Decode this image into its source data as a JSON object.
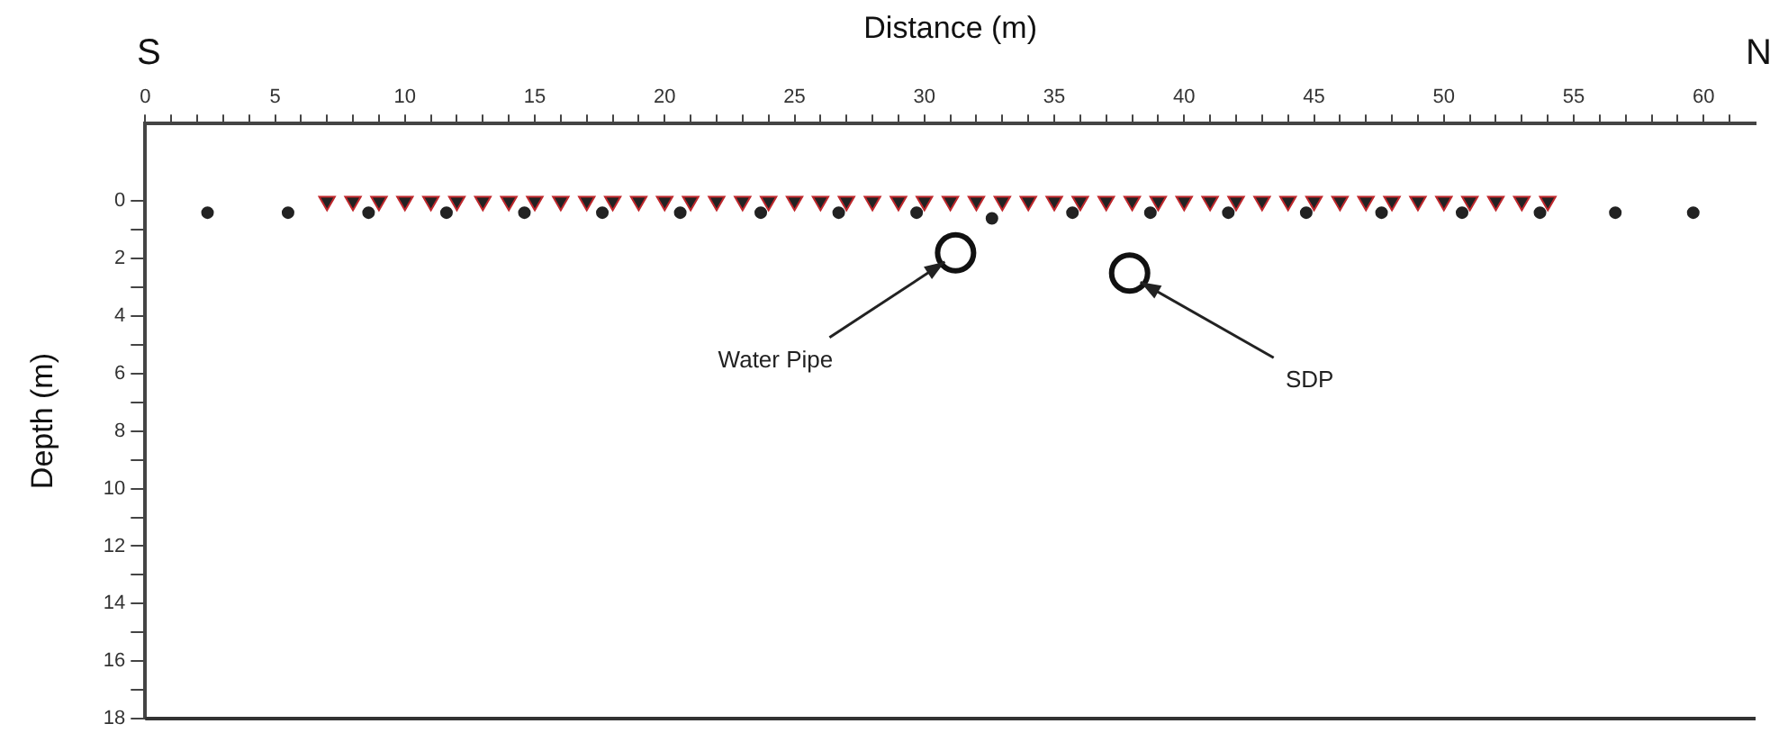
{
  "chart_data": {
    "type": "scatter",
    "xlabel": "Distance (m)",
    "ylabel": "Depth (m)",
    "xlim": [
      0,
      62
    ],
    "xticks": [
      0,
      {
        "value": 1,
        "label": null
      },
      {
        "value": 2,
        "label": null
      },
      {
        "value": 3,
        "label": null
      },
      {
        "value": 4,
        "label": null
      },
      5,
      {
        "value": 6,
        "label": null
      },
      {
        "value": 7,
        "label": null
      },
      {
        "value": 8,
        "label": null
      },
      {
        "value": 9,
        "label": null
      },
      10,
      {
        "value": 11,
        "label": null
      },
      {
        "value": 12,
        "label": null
      },
      {
        "value": 13,
        "label": null
      },
      {
        "value": 14,
        "label": null
      },
      15,
      {
        "value": 16,
        "label": null
      },
      {
        "value": 17,
        "label": null
      },
      {
        "value": 18,
        "label": null
      },
      {
        "value": 19,
        "label": null
      },
      20,
      {
        "value": 21,
        "label": null
      },
      {
        "value": 22,
        "label": null
      },
      {
        "value": 23,
        "label": null
      },
      {
        "value": 24,
        "label": null
      },
      25,
      {
        "value": 26,
        "label": null
      },
      {
        "value": 27,
        "label": null
      },
      {
        "value": 28,
        "label": null
      },
      {
        "value": 29,
        "label": null
      },
      30,
      {
        "value": 31,
        "label": null
      },
      {
        "value": 32,
        "label": null
      },
      {
        "value": 33,
        "label": null
      },
      {
        "value": 34,
        "label": null
      },
      35,
      {
        "value": 36,
        "label": null
      },
      {
        "value": 37,
        "label": null
      },
      {
        "value": 38,
        "label": null
      },
      {
        "value": 39,
        "label": null
      },
      40,
      {
        "value": 41,
        "label": null
      },
      {
        "value": 42,
        "label": null
      },
      {
        "value": 43,
        "label": null
      },
      {
        "value": 44,
        "label": null
      },
      45,
      {
        "value": 46,
        "label": null
      },
      {
        "value": 47,
        "label": null
      },
      {
        "value": 48,
        "label": null
      },
      {
        "value": 49,
        "label": null
      },
      50,
      {
        "value": 51,
        "label": null
      },
      {
        "value": 52,
        "label": null
      },
      {
        "value": 53,
        "label": null
      },
      {
        "value": 54,
        "label": null
      },
      55,
      {
        "value": 56,
        "label": null
      },
      {
        "value": 57,
        "label": null
      },
      {
        "value": 58,
        "label": null
      },
      {
        "value": 59,
        "label": null
      },
      60,
      {
        "value": 61,
        "label": null
      }
    ],
    "ylim": [
      18,
      -2.7
    ],
    "yticks": [
      0,
      {
        "value": 1,
        "label": null
      },
      2,
      {
        "value": 3,
        "label": null
      },
      4,
      {
        "value": 5,
        "label": null
      },
      6,
      {
        "value": 7,
        "label": null
      },
      8,
      {
        "value": 9,
        "label": null
      },
      10,
      {
        "value": 11,
        "label": null
      },
      12,
      {
        "value": 13,
        "label": null
      },
      14,
      {
        "value": 15,
        "label": null
      },
      16,
      {
        "value": 17,
        "label": null
      },
      18
    ],
    "grid": false,
    "legend": false,
    "series": [
      {
        "color": "#222222",
        "marker": "triangle",
        "x": [
          7,
          8,
          9,
          10,
          11,
          12,
          13,
          14,
          15,
          16,
          17,
          18,
          19,
          20,
          21,
          22,
          23,
          24,
          25,
          26,
          27,
          28,
          29,
          30,
          31,
          32,
          33,
          34,
          35,
          36,
          37,
          38,
          39,
          40,
          41,
          42,
          43,
          44,
          45,
          46,
          47,
          48,
          49,
          50,
          51,
          52,
          53,
          54
        ],
        "values": [
          0,
          0,
          0,
          0,
          0,
          0,
          0,
          0,
          0,
          0,
          0,
          0,
          0,
          0,
          0,
          0,
          0,
          0,
          0,
          0,
          0,
          0,
          0,
          0,
          0,
          0,
          0,
          0,
          0,
          0,
          0,
          0,
          0,
          0,
          0,
          0,
          0,
          0,
          0,
          0,
          0,
          0,
          0,
          0,
          0,
          0,
          0,
          0
        ]
      },
      {
        "color": "#222222",
        "marker": "circle",
        "x": [
          2.4,
          5.5,
          8.6,
          11.6,
          14.6,
          17.6,
          20.6,
          23.7,
          26.7,
          29.7,
          32.6,
          35.7,
          38.7,
          41.7,
          44.7,
          47.6,
          50.7,
          53.7,
          56.6,
          59.6
        ],
        "values": [
          0.4,
          0.4,
          0.4,
          0.4,
          0.4,
          0.4,
          0.4,
          0.4,
          0.4,
          0.4,
          0.6,
          0.4,
          0.4,
          0.4,
          0.4,
          0.4,
          0.4,
          0.4,
          0.4,
          0.4
        ]
      },
      {
        "color": "#111111",
        "marker": "circle",
        "line_style": "dashed",
        "x": [
          31.2,
          37.9
        ],
        "values": [
          1.8,
          2.5
        ]
      }
    ],
    "annotations": [
      "S",
      "N",
      {
        "text": "Water Pipe",
        "x": 31.2,
        "y": 1.8
      },
      {
        "text": "SDP",
        "x": 37.9,
        "y": 2.5
      }
    ]
  }
}
